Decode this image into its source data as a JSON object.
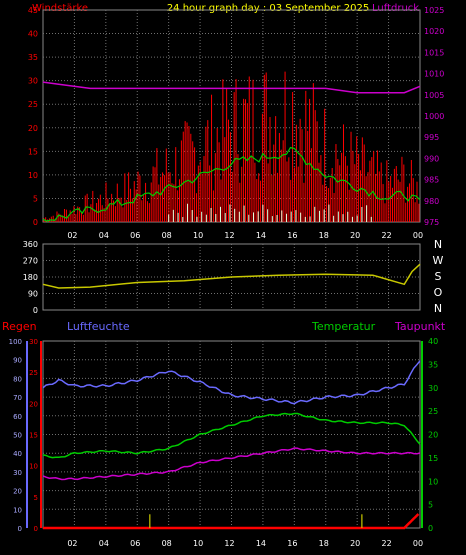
{
  "header": {
    "title": "24 hour graph day : 03 September 2025",
    "left_label": "Windstärke",
    "right_label": "Luftdruck"
  },
  "colors": {
    "wind": "#ff0000",
    "gust_avg": "#00cc00",
    "pressure": "#cc00cc",
    "direction": "#c8c800",
    "humidity": "#6a6aff",
    "temperature": "#00cc00",
    "dewpoint": "#cc00cc",
    "rain": "#ff0000",
    "title": "#ffff00",
    "grid": "#707070"
  },
  "top_panel": {
    "x_ticks": [
      "02",
      "04",
      "06",
      "08",
      "10",
      "12",
      "14",
      "16",
      "18",
      "20",
      "22",
      "00"
    ],
    "wind_ticks": [
      "0",
      "5",
      "10",
      "15",
      "20",
      "25",
      "30",
      "35",
      "40",
      "45"
    ],
    "pressure_ticks": [
      "975",
      "980",
      "985",
      "990",
      "995",
      "1000",
      "1005",
      "1010",
      "1015",
      "1020",
      "1025"
    ]
  },
  "mid_panel": {
    "dir_ticks": [
      "360",
      "270",
      "180",
      "90",
      "0"
    ],
    "compass": [
      "N",
      "W",
      "S",
      "O",
      "N"
    ]
  },
  "bottom_panel": {
    "labels": {
      "rain": "Regen",
      "humidity": "Luftfeuchte",
      "temperature": "Temperatur",
      "dewpoint": "Taupunkt"
    },
    "humidity_ticks": [
      "0",
      "10",
      "20",
      "30",
      "40",
      "50",
      "60",
      "70",
      "80",
      "90",
      "100"
    ],
    "rain_ticks": [
      "0",
      "5",
      "10",
      "15",
      "20",
      "25",
      "30"
    ],
    "temp_ticks": [
      "0",
      "5",
      "10",
      "15",
      "20",
      "25",
      "30",
      "35",
      "40"
    ],
    "x_ticks": [
      "02",
      "04",
      "06",
      "08",
      "10",
      "12",
      "14",
      "16",
      "18",
      "20",
      "22",
      "00"
    ]
  },
  "chart_data": [
    {
      "type": "line",
      "panel": "wind_pressure",
      "ylim_wind": [
        0,
        45
      ],
      "ylim_pressure": [
        975,
        1025
      ],
      "x": [
        0,
        1,
        3,
        5,
        6,
        8,
        12,
        16,
        18,
        20,
        22,
        23,
        24
      ],
      "series": [
        {
          "name": "Windstärke",
          "values": [
            1,
            2,
            5,
            8,
            10,
            14,
            25,
            30,
            20,
            15,
            10,
            12,
            8
          ]
        },
        {
          "name": "Luftdruck",
          "values": [
            1008,
            1007.5,
            1006.5,
            1006.5,
            1006.5,
            1006.5,
            1006.5,
            1006.5,
            1006.5,
            1005.5,
            1005.5,
            1005.5,
            1007
          ]
        }
      ]
    },
    {
      "type": "line",
      "panel": "wind_direction",
      "ylim": [
        0,
        360
      ],
      "x": [
        0,
        1,
        3,
        6,
        9,
        12,
        15,
        18,
        21,
        23,
        23.5,
        24
      ],
      "series": [
        {
          "name": "Windrichtung",
          "values": [
            140,
            120,
            125,
            150,
            160,
            180,
            190,
            195,
            190,
            140,
            210,
            250
          ]
        }
      ]
    },
    {
      "type": "line",
      "panel": "climate",
      "ylim_humidity": [
        0,
        100
      ],
      "ylim_temp": [
        0,
        40
      ],
      "ylim_rain": [
        0,
        30
      ],
      "x": [
        0,
        1,
        2,
        4,
        6,
        8,
        10,
        12,
        14,
        16,
        18,
        20,
        22,
        23,
        24
      ],
      "series": [
        {
          "name": "Luftfeuchte",
          "values": [
            75,
            79,
            76,
            76,
            79,
            84,
            78,
            71,
            69,
            67,
            70,
            71,
            75,
            77,
            90
          ]
        },
        {
          "name": "Temperatur",
          "values": [
            15.5,
            15,
            16,
            16.5,
            16,
            17,
            20,
            22,
            24,
            24.5,
            23,
            22.5,
            22.5,
            22,
            18
          ]
        },
        {
          "name": "Taupunkt",
          "values": [
            11,
            10.5,
            10.5,
            11,
            11.5,
            12,
            14,
            15,
            16,
            17,
            16.5,
            16,
            16,
            16,
            16
          ]
        },
        {
          "name": "Regen",
          "values": [
            0,
            0,
            0,
            0,
            0,
            0,
            0,
            0,
            0,
            0,
            0,
            0,
            0,
            0,
            2.5
          ]
        }
      ]
    }
  ]
}
